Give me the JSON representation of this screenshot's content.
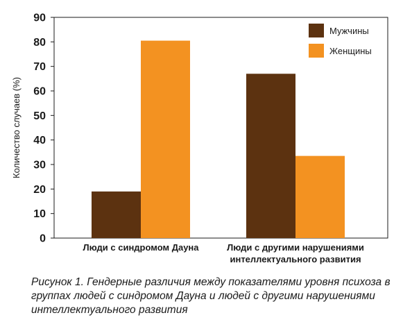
{
  "chart_data": {
    "type": "bar",
    "ylabel": "Количество случаев (%)",
    "ylim": [
      0,
      90
    ],
    "yticks": [
      0,
      10,
      20,
      30,
      40,
      50,
      60,
      70,
      80,
      90
    ],
    "grid": false,
    "legend_position": "top-right",
    "categories": [
      [
        "Люди с синдромом Дауна"
      ],
      [
        "Люди с другими нарушениями",
        "интеллектуального развития"
      ]
    ],
    "series": [
      {
        "name": "Мужчины",
        "color": "#5c3210",
        "values": [
          19,
          67
        ]
      },
      {
        "name": "Женщины",
        "color": "#f39221",
        "values": [
          80.5,
          33.5
        ]
      }
    ]
  },
  "caption": "Рисунок 1. Гендерные различия между показателями уровня психоза в группах людей с синдромом Дауна и людей с другими нарушениями интеллектуального развития"
}
